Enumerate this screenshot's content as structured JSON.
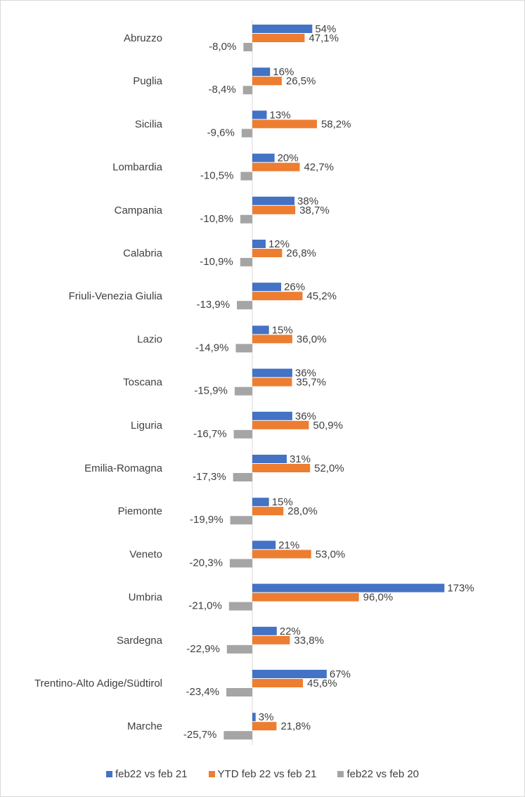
{
  "chart_data": {
    "type": "bar",
    "orientation": "horizontal",
    "categories": [
      "Abruzzo",
      "Puglia",
      "Sicilia",
      "Lombardia",
      "Campania",
      "Calabria",
      "Friuli-Venezia Giulia",
      "Lazio",
      "Toscana",
      "Liguria",
      "Emilia-Romagna",
      "Piemonte",
      "Veneto",
      "Umbria",
      "Sardegna",
      "Trentino-Alto Adige/Südtirol",
      "Marche"
    ],
    "series": [
      {
        "name": "feb22 vs feb 21",
        "color": "#4472c4",
        "values": [
          54,
          16,
          13,
          20,
          38,
          12,
          26,
          15,
          36,
          36,
          31,
          15,
          21,
          173,
          22,
          67,
          3
        ],
        "labels": [
          "54%",
          "16%",
          "13%",
          "20%",
          "38%",
          "12%",
          "26%",
          "15%",
          "36%",
          "36%",
          "31%",
          "15%",
          "21%",
          "173%",
          "22%",
          "67%",
          "3%"
        ]
      },
      {
        "name": "YTD feb 22 vs feb 21",
        "color": "#ed7d31",
        "values": [
          47.1,
          26.5,
          58.2,
          42.7,
          38.7,
          26.8,
          45.2,
          36.0,
          35.7,
          50.9,
          52.0,
          28.0,
          53.0,
          96.0,
          33.8,
          45.6,
          21.8
        ],
        "labels": [
          "47,1%",
          "26,5%",
          "58,2%",
          "42,7%",
          "38,7%",
          "26,8%",
          "45,2%",
          "36,0%",
          "35,7%",
          "50,9%",
          "52,0%",
          "28,0%",
          "53,0%",
          "96,0%",
          "33,8%",
          "45,6%",
          "21,8%"
        ]
      },
      {
        "name": "feb22 vs feb 20",
        "color": "#a5a5a5",
        "values": [
          -8.0,
          -8.4,
          -9.6,
          -10.5,
          -10.8,
          -10.9,
          -13.9,
          -14.9,
          -15.9,
          -16.7,
          -17.3,
          -19.9,
          -20.3,
          -21.0,
          -22.9,
          -23.4,
          -25.7
        ],
        "labels": [
          "-8,0%",
          "-8,4%",
          "-9,6%",
          "-10,5%",
          "-10,8%",
          "-10,9%",
          "-13,9%",
          "-14,9%",
          "-15,9%",
          "-16,7%",
          "-17,3%",
          "-19,9%",
          "-20,3%",
          "-21,0%",
          "-22,9%",
          "-23,4%",
          "-25,7%"
        ]
      }
    ],
    "legend_position": "bottom",
    "grid": false
  }
}
